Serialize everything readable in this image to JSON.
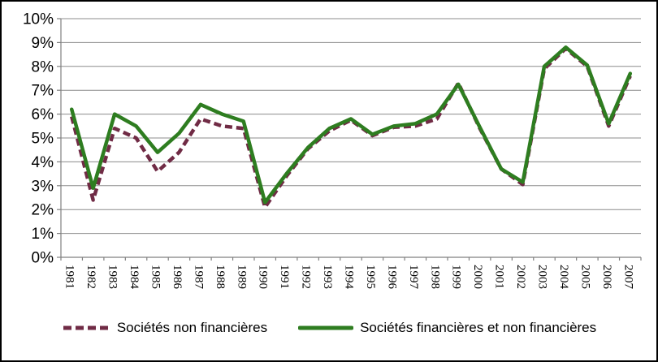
{
  "chart_data": {
    "type": "line",
    "title": "",
    "xlabel": "",
    "ylabel": "",
    "categories": [
      "1981",
      "1982",
      "1983",
      "1984",
      "1985",
      "1986",
      "1987",
      "1988",
      "1989",
      "1990",
      "1991",
      "1992",
      "1993",
      "1994",
      "1995",
      "1996",
      "1997",
      "1998",
      "1999",
      "2000",
      "2001",
      "2002",
      "2003",
      "2004",
      "2005",
      "2006",
      "2007"
    ],
    "series": [
      {
        "name": "Sociétés non financières",
        "style": "dashed",
        "color": "#702b45",
        "values": [
          5.9,
          2.4,
          5.4,
          5.0,
          3.6,
          4.4,
          5.8,
          5.5,
          5.4,
          2.1,
          3.4,
          4.55,
          5.3,
          5.75,
          5.1,
          5.45,
          5.5,
          5.8,
          7.3,
          5.4,
          3.7,
          3.05,
          7.9,
          8.75,
          8.0,
          5.5,
          7.6
        ]
      },
      {
        "name": "Sociétés financières et non financières",
        "style": "solid",
        "color": "#2e7d20",
        "values": [
          6.2,
          2.9,
          6.0,
          5.5,
          4.4,
          5.2,
          6.4,
          6.0,
          5.7,
          2.3,
          3.5,
          4.6,
          5.4,
          5.8,
          5.15,
          5.5,
          5.6,
          6.0,
          7.25,
          5.45,
          3.7,
          3.15,
          8.0,
          8.8,
          8.05,
          5.6,
          7.7
        ]
      }
    ],
    "ylim": [
      0,
      10
    ],
    "y_tick_labels": [
      "0%",
      "1%",
      "2%",
      "3%",
      "4%",
      "5%",
      "6%",
      "7%",
      "8%",
      "9%",
      "10%"
    ],
    "grid": true,
    "grid_color": "#8c8c8c",
    "axis_color": "#808080",
    "legend_position": "bottom"
  }
}
